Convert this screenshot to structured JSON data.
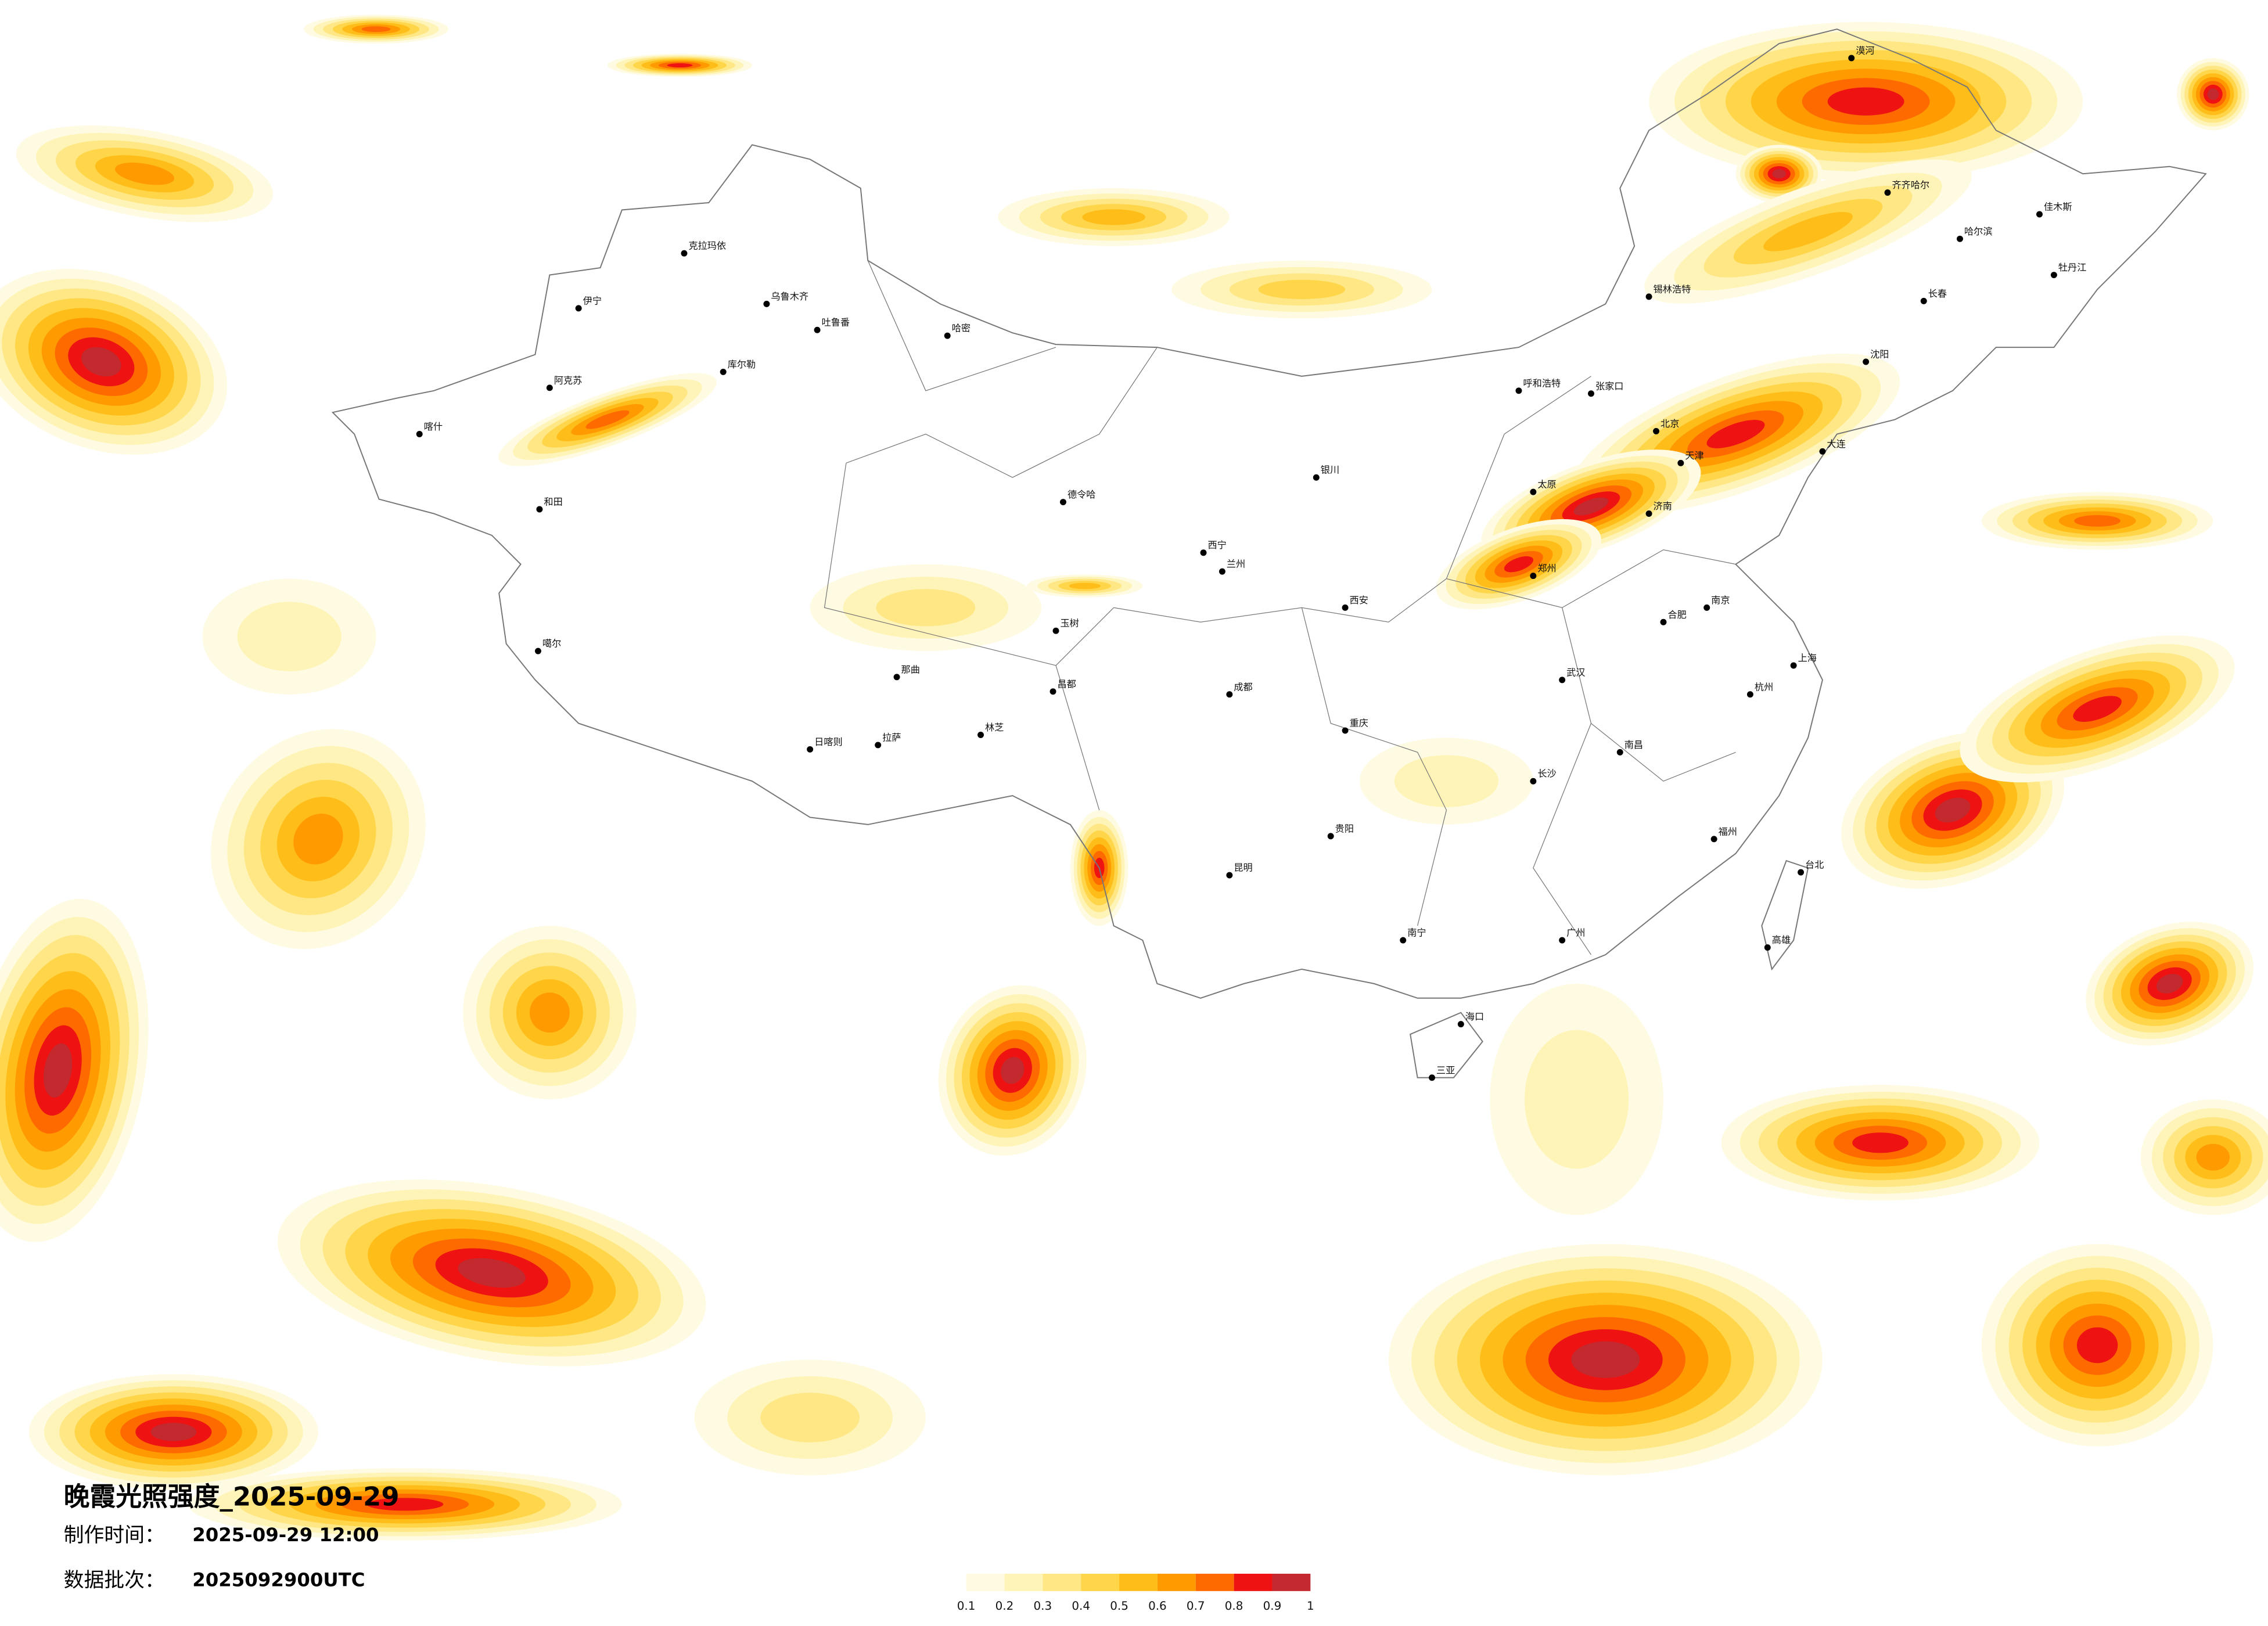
{
  "title": "晚霞光照强度_2025-09-29",
  "made_label": "制作时间：",
  "made_time": "2025-09-29 12:00",
  "batch_label": "数据批次：",
  "batch": "2025092900UTC",
  "legend": {
    "colors": [
      "#fffbe3",
      "#fff4b8",
      "#ffe785",
      "#ffd54a",
      "#ffbd1a",
      "#ff9a00",
      "#ff6a00",
      "#ee1212",
      "#c22a30"
    ],
    "ticks": [
      0.1,
      0.2,
      0.3,
      0.4,
      0.5,
      0.6,
      0.7,
      0.8,
      0.9,
      1
    ]
  },
  "cities": [
    "伊宁",
    "克拉玛依",
    "乌鲁木齐",
    "吐鲁番",
    "哈密",
    "库尔勒",
    "阿克苏",
    "喀什",
    "和田",
    "噶尔",
    "日喀则",
    "拉萨",
    "林芝",
    "那曲",
    "昌都",
    "玉树",
    "德令哈",
    "西宁",
    "兰州",
    "银川",
    "呼和浩特",
    "张家口",
    "北京",
    "天津",
    "济南",
    "太原",
    "郑州",
    "西安",
    "成都",
    "重庆",
    "贵阳",
    "昆明",
    "南宁",
    "广州",
    "海口",
    "三亚",
    "福州",
    "南昌",
    "长沙",
    "武汉",
    "合肥",
    "南京",
    "上海",
    "杭州",
    "台北",
    "高雄",
    "哈尔滨",
    "长春",
    "沈阳",
    "大连",
    "漠河",
    "齐齐哈尔",
    "佳木斯",
    "牡丹江",
    "锡林浩特"
  ]
}
